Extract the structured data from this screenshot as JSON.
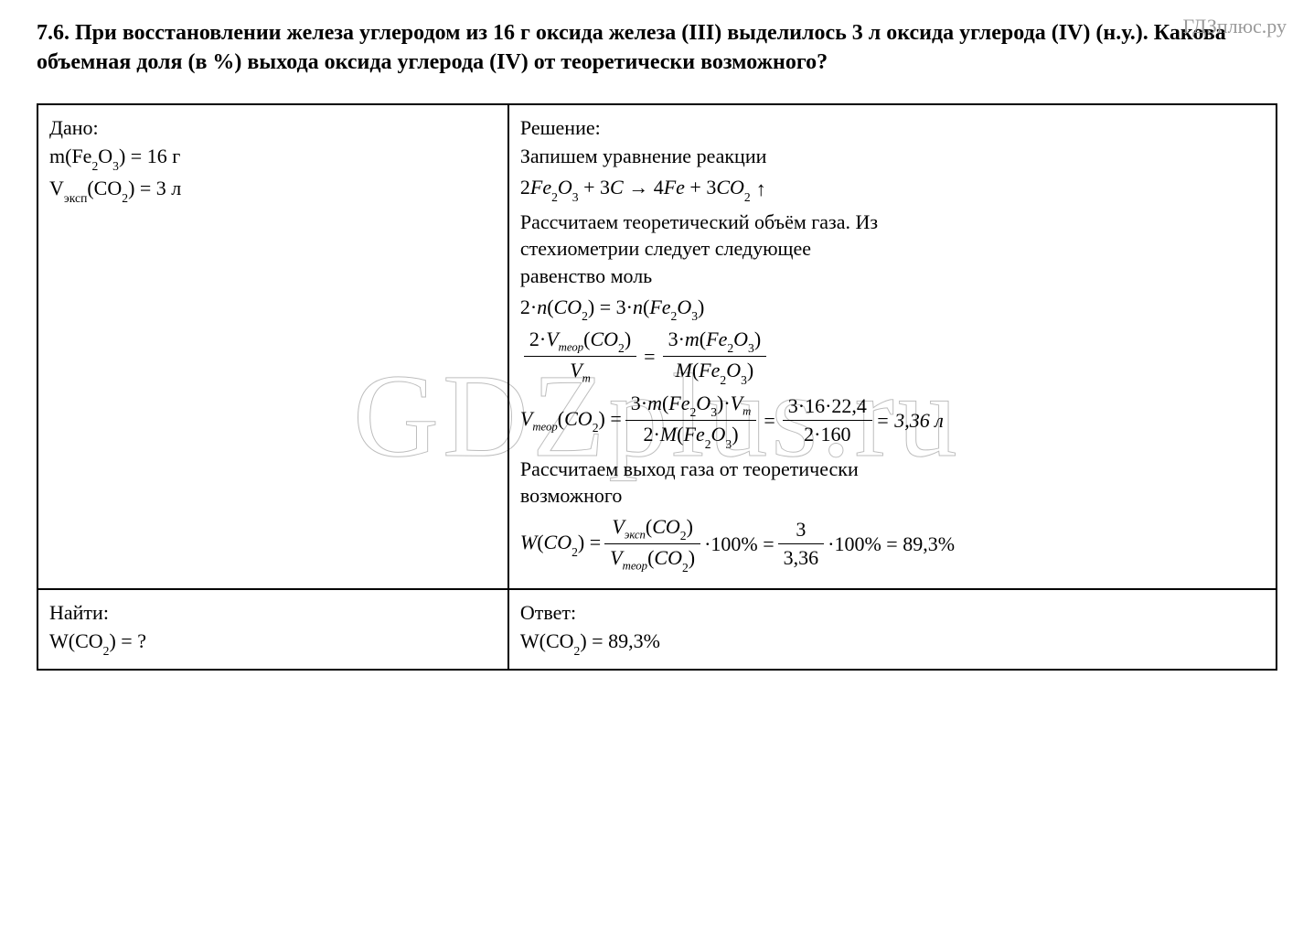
{
  "watermark_corner": "ГДЗплюс.ру",
  "watermark_big": "GDZplus.ru",
  "title": "7.6. При восстановлении железа углеродом из 16 г оксида железа (III) выделилось 3 л оксида углерода (IV) (н.у.). Какова объемная доля (в %) выхода оксида углерода (IV) от теоретически возможного?",
  "left_top": {
    "header": "Дано:",
    "line1_a": "m(Fe",
    "line1_b": "O",
    "line1_c": ") = 16 г",
    "line2_a": "V",
    "line2_sub": "эксп",
    "line2_b": "(CO",
    "line2_c": ") = 3 л"
  },
  "right_top": {
    "header": "Решение:",
    "p1": "Запишем уравнение реакции",
    "eq1_a": "2Fe",
    "eq1_b": "O",
    "eq1_c": " + 3C → 4Fe + 3CO",
    "eq1_arrow": "↑",
    "p2a": "Рассчитаем теоретический объём газа. Из",
    "p2b": "стехиометрии следует следующее",
    "p2c": "равенство моль",
    "eq2_a": "2·n(CO",
    "eq2_b": ") = 3·n(Fe",
    "eq2_c": "O",
    "eq2_d": ")",
    "eq3_num_a": "2·V",
    "eq3_num_sub": "теор",
    "eq3_num_b": "(CO",
    "eq3_num_c": ")",
    "eq3_den_a": "V",
    "eq3_den_sub": "m",
    "eq3_rhs_num_a": "3·m(Fe",
    "eq3_rhs_num_b": "O",
    "eq3_rhs_num_c": ")",
    "eq3_rhs_den_a": "M(Fe",
    "eq3_rhs_den_b": "O",
    "eq3_rhs_den_c": ")",
    "eq4_lhs_a": "V",
    "eq4_lhs_sub": "теор",
    "eq4_lhs_b": "(CO",
    "eq4_lhs_c": ") =",
    "eq4_num_a": "3·m(Fe",
    "eq4_num_b": "O",
    "eq4_num_c": ")·V",
    "eq4_num_sub": "m",
    "eq4_den_a": "2·M(Fe",
    "eq4_den_b": "O",
    "eq4_den_c": ")",
    "eq4_r2_num": "3·16·22,4",
    "eq4_r2_den": "2·160",
    "eq4_result": " = 3,36 л",
    "p3a": "Рассчитаем выход газа от теоретически",
    "p3b": "возможного",
    "eq5_lhs_a": "W(CO",
    "eq5_lhs_b": ") =",
    "eq5_num_a": "V",
    "eq5_num_sub": "эксп",
    "eq5_num_b": "(CO",
    "eq5_num_c": ")",
    "eq5_den_a": "V",
    "eq5_den_sub": "теор",
    "eq5_den_b": "(CO",
    "eq5_den_c": ")",
    "eq5_mid": "·100% =",
    "eq5_r2_num": "3",
    "eq5_r2_den": "3,36",
    "eq5_tail": "·100% = 89,3%"
  },
  "left_bottom": {
    "header": "Найти:",
    "line_a": "W(CO",
    "line_b": ") = ?"
  },
  "right_bottom": {
    "header": "Ответ:",
    "line_a": "W(CO",
    "line_b": ") = 89,3%"
  }
}
